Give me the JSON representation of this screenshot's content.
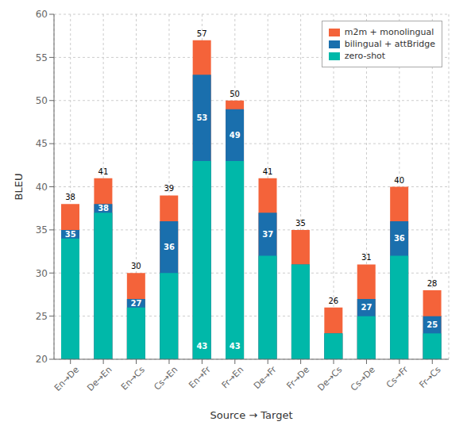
{
  "chart_data": {
    "type": "bar",
    "xlabel": "Source → Target",
    "ylabel": "BLEU",
    "categories": [
      "En→De",
      "De→En",
      "En→Cs",
      "Cs→En",
      "En→Fr",
      "Fr→En",
      "De→Fr",
      "Fr→De",
      "De→Cs",
      "Cs→De",
      "Cs→Fr",
      "Fr→Cs"
    ],
    "series": [
      {
        "name": "m2m + monolingual",
        "color": "#f4633a",
        "values": [
          38,
          41,
          30,
          39,
          57,
          50,
          41,
          35,
          26,
          31,
          40,
          28
        ]
      },
      {
        "name": "bilingual + attBridge",
        "color": "#1a6fad",
        "values": [
          35,
          38,
          27,
          36,
          53,
          49,
          37,
          31,
          23,
          27,
          36,
          25
        ],
        "value_labels": [
          "35",
          "38",
          "27",
          "36",
          "53",
          "49",
          "37",
          null,
          null,
          "27",
          "36",
          "25"
        ]
      },
      {
        "name": "zero-shot",
        "color": "#00b8a9",
        "values": [
          34,
          37,
          26,
          30,
          43,
          43,
          32,
          31,
          23,
          25,
          32,
          23
        ],
        "value_labels": [
          null,
          null,
          null,
          null,
          "43",
          "43",
          null,
          null,
          null,
          null,
          null,
          null
        ]
      }
    ],
    "ylim": [
      20,
      60
    ],
    "yticks": [
      20,
      25,
      30,
      35,
      40,
      45,
      50,
      55,
      60
    ],
    "grid": true,
    "legend": "upper right",
    "stacked": false,
    "data_labels": true
  }
}
